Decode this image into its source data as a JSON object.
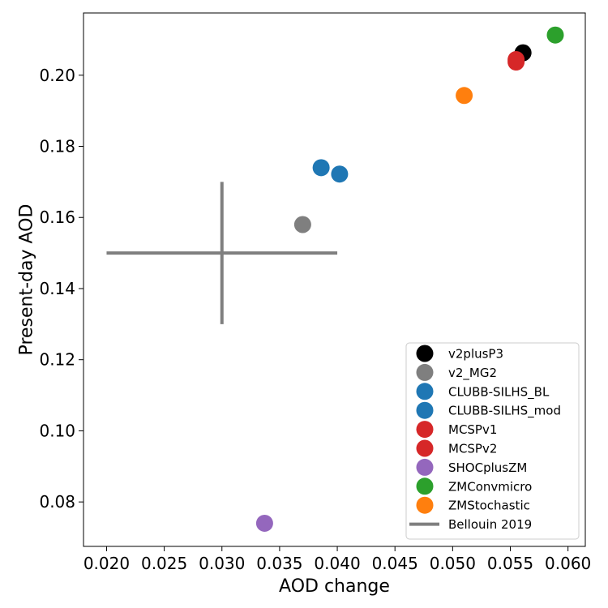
{
  "chart_data": {
    "type": "scatter",
    "title": "",
    "xlabel": "AOD change",
    "ylabel": "Present-day AOD",
    "xlim": [
      0.018,
      0.0615
    ],
    "ylim": [
      0.0675,
      0.2175
    ],
    "xticks": [
      0.02,
      0.025,
      0.03,
      0.035,
      0.04,
      0.045,
      0.05,
      0.055,
      0.06
    ],
    "xtick_labels": [
      "0.020",
      "0.025",
      "0.030",
      "0.035",
      "0.040",
      "0.045",
      "0.050",
      "0.055",
      "0.060"
    ],
    "yticks": [
      0.08,
      0.1,
      0.12,
      0.14,
      0.16,
      0.18,
      0.2
    ],
    "ytick_labels": [
      "0.08",
      "0.10",
      "0.12",
      "0.14",
      "0.16",
      "0.18",
      "0.20"
    ],
    "grid": false,
    "legend_position": "lower-right",
    "series": [
      {
        "name": "v2plusP3",
        "color": "#000000",
        "points": [
          [
            0.0561,
            0.2063
          ]
        ]
      },
      {
        "name": "v2_MG2",
        "color": "#7f7f7f",
        "points": [
          [
            0.037,
            0.158
          ]
        ]
      },
      {
        "name": "CLUBB-SILHS_BL",
        "color": "#1f77b4",
        "points": [
          [
            0.0386,
            0.174
          ]
        ]
      },
      {
        "name": "CLUBB-SILHS_mod",
        "color": "#1f77b4",
        "points": [
          [
            0.0402,
            0.1722
          ]
        ]
      },
      {
        "name": "MCSPv1",
        "color": "#d62728",
        "points": [
          [
            0.0555,
            0.2044
          ]
        ]
      },
      {
        "name": "MCSPv2",
        "color": "#d62728",
        "points": [
          [
            0.0555,
            0.2037
          ]
        ]
      },
      {
        "name": "SHOCplusZM",
        "color": "#9467bd",
        "points": [
          [
            0.0337,
            0.074
          ]
        ]
      },
      {
        "name": "ZMConvmicro",
        "color": "#2ca02c",
        "points": [
          [
            0.0589,
            0.2113
          ]
        ]
      },
      {
        "name": "ZMStochastic",
        "color": "#ff7f0e",
        "points": [
          [
            0.051,
            0.1943
          ]
        ]
      }
    ],
    "reference": {
      "name": "Bellouin 2019",
      "color": "#7f7f7f",
      "center": [
        0.03,
        0.15
      ],
      "x_range": [
        0.02,
        0.04
      ],
      "y_range": [
        0.13,
        0.17
      ]
    }
  }
}
